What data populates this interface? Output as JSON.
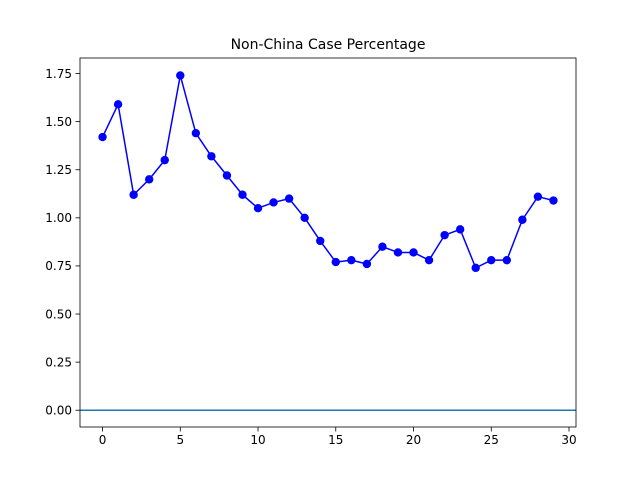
{
  "chart_data": {
    "type": "line",
    "title": "Non-China Case Percentage",
    "xlabel": "",
    "ylabel": "",
    "xlim": [
      -1.45,
      30.45
    ],
    "ylim": [
      -0.0872,
      1.8308
    ],
    "x_ticks": [
      0,
      5,
      10,
      15,
      20,
      25,
      30
    ],
    "x_tick_labels": [
      "0",
      "5",
      "10",
      "15",
      "20",
      "25",
      "30"
    ],
    "y_ticks": [
      0,
      0.25,
      0.5,
      0.75,
      1.0,
      1.25,
      1.5,
      1.75
    ],
    "y_tick_labels": [
      "0.00",
      "0.25",
      "0.50",
      "0.75",
      "1.00",
      "1.25",
      "1.50",
      "1.75"
    ],
    "grid": false,
    "legend": "none",
    "series": [
      {
        "color": "#0000ff",
        "marker": "circle",
        "x": [
          0,
          1,
          2,
          3,
          4,
          5,
          6,
          7,
          8,
          9,
          10,
          11,
          12,
          13,
          14,
          15,
          16,
          17,
          18,
          19,
          20,
          21,
          22,
          23,
          24,
          25,
          26,
          27,
          28,
          29
        ],
        "values": [
          1.42,
          1.59,
          1.12,
          1.2,
          1.3,
          1.74,
          1.44,
          1.32,
          1.22,
          1.12,
          1.05,
          1.08,
          1.1,
          1.0,
          0.88,
          0.77,
          0.78,
          0.76,
          0.85,
          0.82,
          0.82,
          0.78,
          0.91,
          0.94,
          0.74,
          0.78,
          0.78,
          0.99,
          1.11,
          1.09
        ]
      }
    ],
    "reference_line": {
      "y": 0,
      "color": "#1f77b4"
    }
  }
}
